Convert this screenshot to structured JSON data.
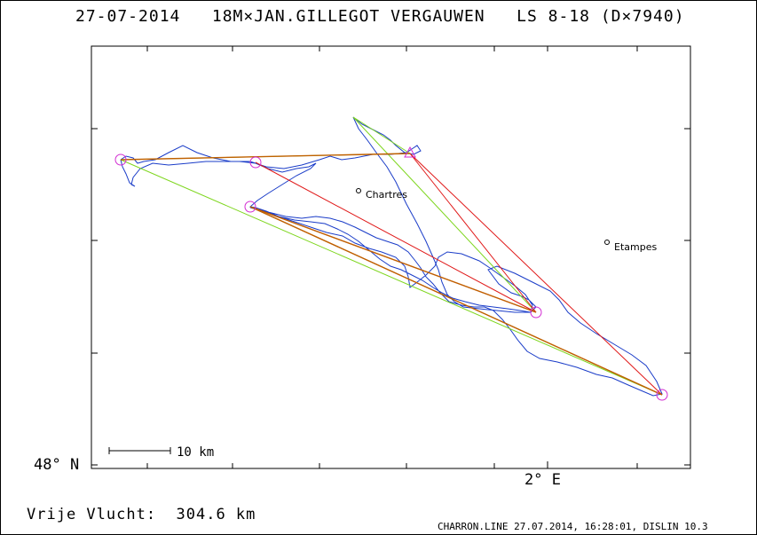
{
  "header": {
    "title": "27-07-2014   18M×JAN.GILLEGOT VERGAUWEN   LS 8-18 (D×7940)"
  },
  "axes": {
    "y_label": "48° N",
    "x_label": "2° E"
  },
  "scale_bar": {
    "label": "10 km"
  },
  "towns": [
    {
      "name": "Chartres"
    },
    {
      "name": "Etampes"
    }
  ],
  "footer": {
    "distance_text": "Vrije Vlucht:  304.6 km",
    "info": "CHARRON.LINE 27.07.2014, 16:28:01, DISLIN 10.3"
  },
  "colors": {
    "track": "#1a3cc8",
    "triangle": "#e01818",
    "optimized": "#7ed61e",
    "route": "#c06000",
    "turnpoint": "#d22cd2"
  }
}
